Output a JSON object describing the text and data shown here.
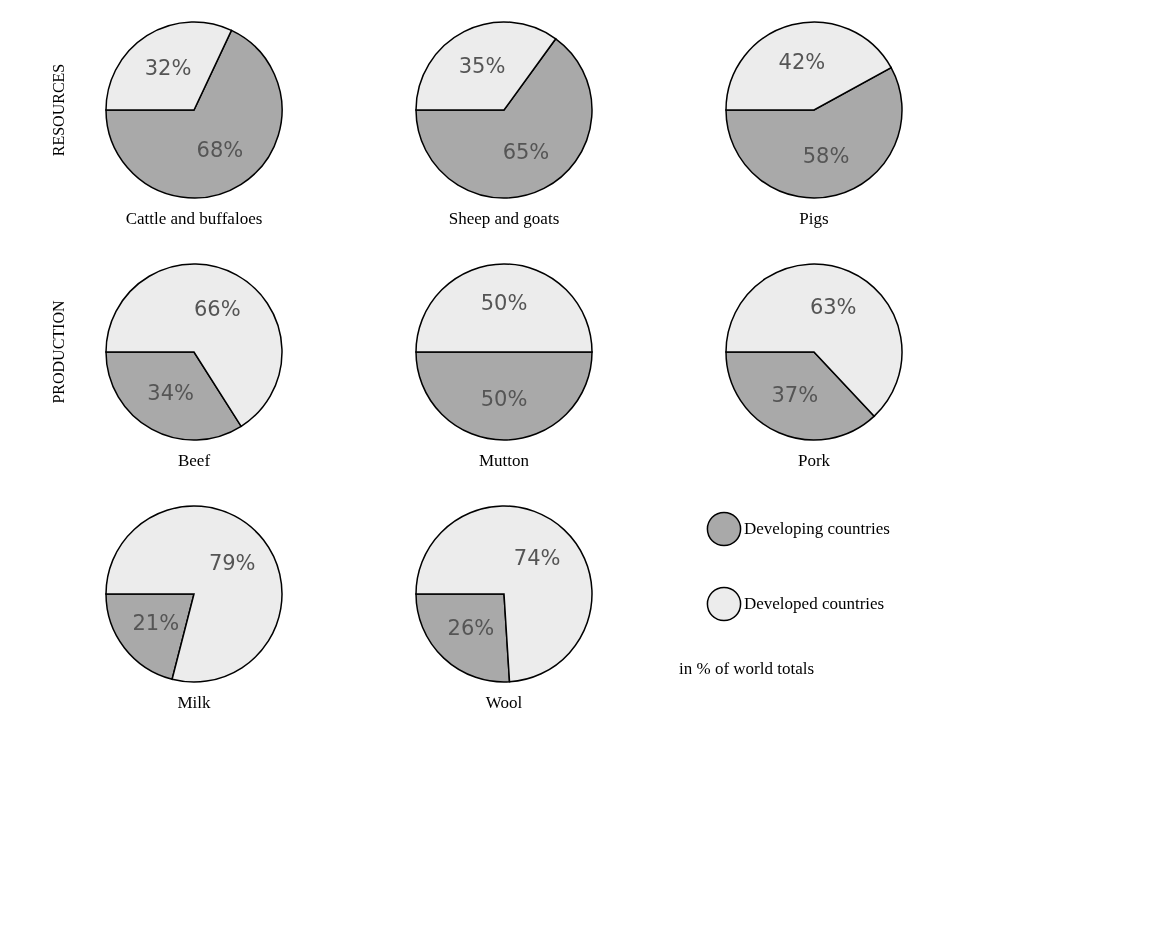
{
  "chart_data": [
    {
      "type": "pie",
      "title": "Cattle and buffaloes",
      "categories": [
        null,
        null
      ],
      "values": [
        68,
        32
      ],
      "value_labels": [
        "68%",
        "32%"
      ],
      "colors": [
        "#a9a9a9",
        "#ececec"
      ],
      "annotations": [
        "RESOURCES"
      ]
    },
    {
      "type": "pie",
      "title": "Sheep and goats",
      "categories": [
        null,
        null
      ],
      "values": [
        65,
        35
      ],
      "value_labels": [
        "65%",
        "35%"
      ],
      "colors": [
        "#a9a9a9",
        "#ececec"
      ]
    },
    {
      "type": "pie",
      "title": "Pigs",
      "categories": [
        null,
        null
      ],
      "values": [
        58,
        42
      ],
      "value_labels": [
        "58%",
        "42%"
      ],
      "colors": [
        "#a9a9a9",
        "#ececec"
      ]
    },
    {
      "type": "pie",
      "title": "Beef",
      "categories": [
        null,
        null
      ],
      "values": [
        34,
        66
      ],
      "value_labels": [
        "34%",
        "66%"
      ],
      "colors": [
        "#a9a9a9",
        "#ececec"
      ],
      "annotations": [
        "PRODUCTION"
      ]
    },
    {
      "type": "pie",
      "title": "Mutton",
      "categories": [
        null,
        null
      ],
      "values": [
        50,
        50
      ],
      "value_labels": [
        "50%",
        "50%"
      ],
      "colors": [
        "#a9a9a9",
        "#ececec"
      ]
    },
    {
      "type": "pie",
      "title": "Pork",
      "categories": [
        null,
        null
      ],
      "values": [
        37,
        63
      ],
      "value_labels": [
        "37%",
        "63%"
      ],
      "colors": [
        "#a9a9a9",
        "#ececec"
      ]
    },
    {
      "type": "pie",
      "title": "Milk",
      "categories": [
        null,
        null
      ],
      "values": [
        21,
        79
      ],
      "value_labels": [
        "21%",
        "79%"
      ],
      "colors": [
        "#a9a9a9",
        "#ececec"
      ]
    },
    {
      "type": "pie",
      "title": "Wool",
      "categories": [
        "Developing countries",
        "Developed countries"
      ],
      "values": [
        26,
        74
      ],
      "value_labels": [
        "26%",
        "74%"
      ],
      "colors": [
        "#a9a9a9",
        "#ececec"
      ],
      "legend": "right",
      "annotations": [
        "in % of world totals"
      ]
    }
  ]
}
